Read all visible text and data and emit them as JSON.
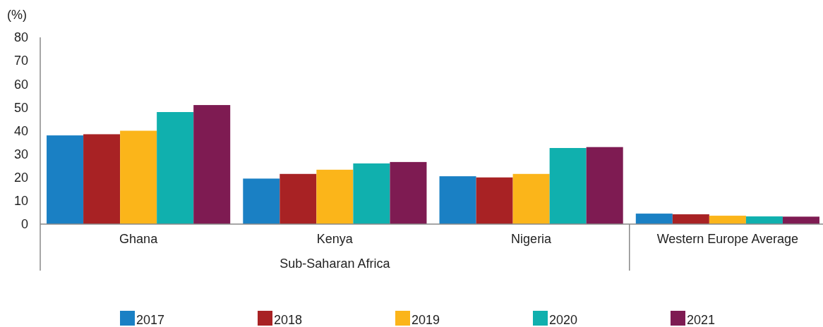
{
  "chart_data": {
    "type": "bar",
    "ylabel": "(%)",
    "categories": [
      "Ghana",
      "Kenya",
      "Nigeria",
      "Western Europe Average"
    ],
    "series": [
      {
        "name": "2017",
        "color": "#1a80c4",
        "values": [
          38,
          19.5,
          20.5,
          4.5
        ]
      },
      {
        "name": "2018",
        "color": "#a82224",
        "values": [
          38.5,
          21.5,
          20,
          4.2
        ]
      },
      {
        "name": "2019",
        "color": "#fbb51a",
        "values": [
          40,
          23.3,
          21.5,
          3.6
        ]
      },
      {
        "name": "2020",
        "color": "#10b0ae",
        "values": [
          48,
          26,
          32.6,
          3.3
        ]
      },
      {
        "name": "2021",
        "color": "#7e1b52",
        "values": [
          51,
          26.6,
          33,
          3.2
        ]
      }
    ],
    "ylim": [
      0,
      80
    ],
    "yticks": [
      0,
      10,
      20,
      30,
      40,
      50,
      60,
      70,
      80
    ],
    "grid": false,
    "legend": "bottom",
    "annotations": [
      "Sub-Saharan Africa"
    ]
  }
}
